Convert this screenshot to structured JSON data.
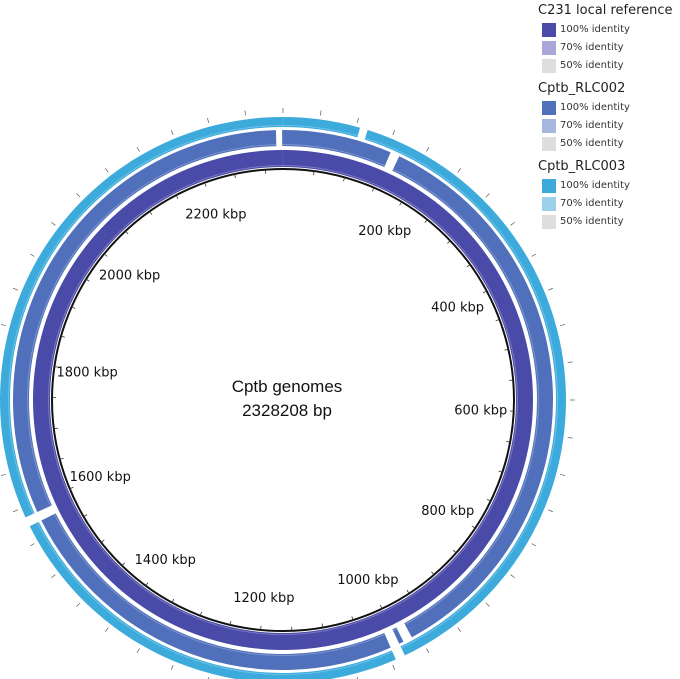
{
  "center": {
    "line1": "Cptb genomes",
    "line2": "2328208 bp"
  },
  "genome_length_bp": 2328208,
  "position_labels": [
    "200 kbp",
    "400 kbp",
    "600 kbp",
    "800 kbp",
    "1000 kbp",
    "1200 kbp",
    "1400 kbp",
    "1600 kbp",
    "1800 kbp",
    "2000 kbp",
    "2200 kbp"
  ],
  "position_values_kbp": [
    200,
    400,
    600,
    800,
    1000,
    1200,
    1400,
    1600,
    1800,
    2000,
    2200
  ],
  "rings": [
    {
      "name": "C231 local reference",
      "color": "#4a4aa8",
      "gaps_deg": []
    },
    {
      "name": "Cptb_RLC002",
      "color": "#5070bb",
      "gaps_deg": [
        [
          151.5,
          153.5
        ],
        [
          154.5,
          156.5
        ],
        [
          243.5,
          245.5
        ],
        [
          358.5,
          359.8
        ],
        [
          23.5,
          25.5
        ]
      ]
    },
    {
      "name": "Cptb_RLC003",
      "color": "#3cabdc",
      "gaps_deg": [
        [
          243.5,
          245.5
        ],
        [
          15.8,
          17.4
        ],
        [
          154.5,
          156.5
        ]
      ]
    }
  ],
  "legend": {
    "groups": [
      {
        "title": "C231 local reference",
        "items": [
          {
            "label": "100% identity",
            "color": "#4a4aa8"
          },
          {
            "label": "70% identity",
            "color": "#a9a6d9"
          },
          {
            "label": "50% identity",
            "color": "#dedede"
          }
        ]
      },
      {
        "title": "Cptb_RLC002",
        "items": [
          {
            "label": "100% identity",
            "color": "#5070bb"
          },
          {
            "label": "70% identity",
            "color": "#a6b8e0"
          },
          {
            "label": "50% identity",
            "color": "#dedede"
          }
        ]
      },
      {
        "title": "Cptb_RLC003",
        "items": [
          {
            "label": "100% identity",
            "color": "#3cabdc"
          },
          {
            "label": "70% identity",
            "color": "#9fd0ea"
          },
          {
            "label": "50% identity",
            "color": "#dedede"
          }
        ]
      }
    ]
  }
}
